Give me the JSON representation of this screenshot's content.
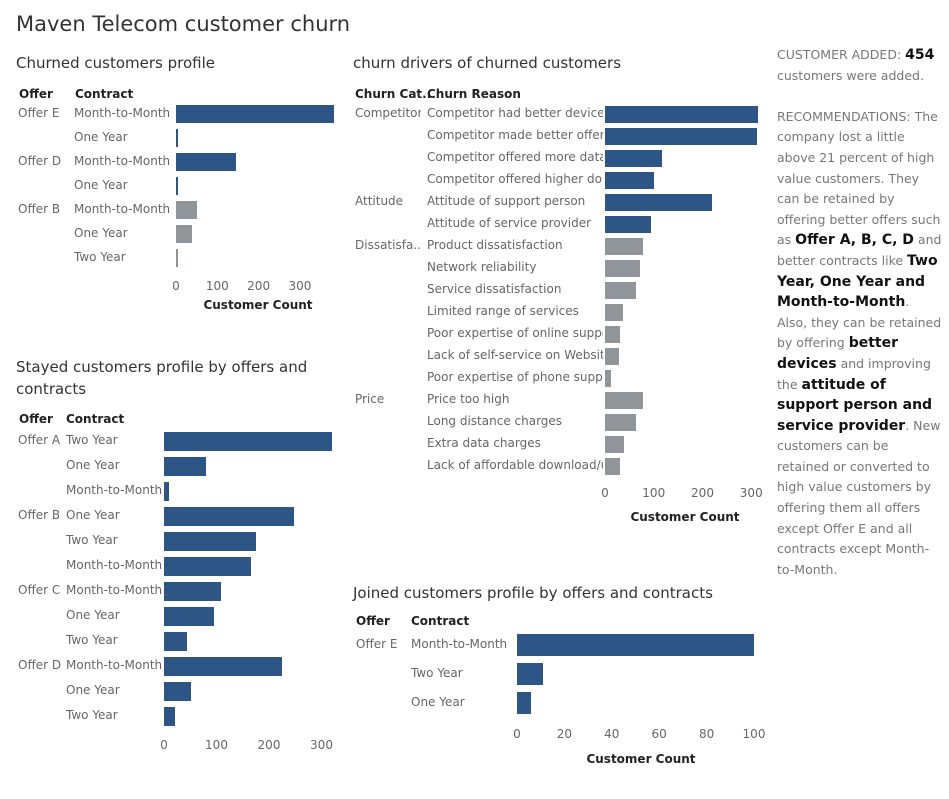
{
  "dashboard_title": "Maven Telecom customer churn",
  "colors": {
    "primary": "#2d5586",
    "secondary": "#8f9598"
  },
  "churned_profile": {
    "title": "Churned customers profile",
    "offer_header": "Offer",
    "contract_header": "Contract",
    "axis_title": "Customer Count",
    "ticks": [
      "0",
      "100",
      "200",
      "300"
    ],
    "chart_data": {
      "type": "bar",
      "orientation": "horizontal",
      "xlim": [
        0,
        380
      ],
      "rows": [
        {
          "offer": "Offer E",
          "contract": "Month-to-Month",
          "value": 383,
          "color": "primary"
        },
        {
          "offer": "",
          "contract": "One Year",
          "value": 3,
          "color": "primary"
        },
        {
          "offer": "Offer D",
          "contract": "Month-to-Month",
          "value": 145,
          "color": "primary"
        },
        {
          "offer": "",
          "contract": "One Year",
          "value": 5,
          "color": "primary"
        },
        {
          "offer": "Offer B",
          "contract": "Month-to-Month",
          "value": 52,
          "color": "secondary"
        },
        {
          "offer": "",
          "contract": "One Year",
          "value": 38,
          "color": "secondary"
        },
        {
          "offer": "",
          "contract": "Two Year",
          "value": 4,
          "color": "secondary"
        }
      ]
    }
  },
  "drivers": {
    "title": "churn drivers of churned customers",
    "cat_header": "Churn Cat..",
    "reason_header": "Churn Reason",
    "axis_title": "Customer Count",
    "ticks": [
      "0",
      "100",
      "200",
      "300"
    ],
    "chart_data": {
      "type": "bar",
      "orientation": "horizontal",
      "xlim": [
        0,
        320
      ],
      "rows": [
        {
          "category": "Competitor",
          "reason": "Competitor had better devices",
          "value": 313,
          "color": "primary"
        },
        {
          "category": "",
          "reason": "Competitor made better offer",
          "value": 311,
          "color": "primary"
        },
        {
          "category": "",
          "reason": "Competitor offered more data",
          "value": 117,
          "color": "primary"
        },
        {
          "category": "",
          "reason": "Competitor offered higher do..",
          "value": 100,
          "color": "primary"
        },
        {
          "category": "Attitude",
          "reason": "Attitude of support person",
          "value": 220,
          "color": "primary"
        },
        {
          "category": "",
          "reason": "Attitude of service provider",
          "value": 94,
          "color": "primary"
        },
        {
          "category": "Dissatisfa..",
          "reason": "Product dissatisfaction",
          "value": 77,
          "color": "secondary"
        },
        {
          "category": "",
          "reason": "Network reliability",
          "value": 72,
          "color": "secondary"
        },
        {
          "category": "",
          "reason": "Service dissatisfaction",
          "value": 63,
          "color": "secondary"
        },
        {
          "category": "",
          "reason": "Limited range of services",
          "value": 37,
          "color": "secondary"
        },
        {
          "category": "",
          "reason": "Poor expertise of online suppo..",
          "value": 31,
          "color": "secondary"
        },
        {
          "category": "",
          "reason": "Lack of self-service on Website",
          "value": 29,
          "color": "secondary"
        },
        {
          "category": "",
          "reason": "Poor expertise of phone suppo..",
          "value": 12,
          "color": "secondary"
        },
        {
          "category": "Price",
          "reason": "Price too high",
          "value": 78,
          "color": "secondary"
        },
        {
          "category": "",
          "reason": "Long distance charges",
          "value": 64,
          "color": "secondary"
        },
        {
          "category": "",
          "reason": "Extra data charges",
          "value": 39,
          "color": "secondary"
        },
        {
          "category": "",
          "reason": "Lack of affordable download/u..",
          "value": 30,
          "color": "secondary"
        }
      ]
    }
  },
  "stayed_profile": {
    "title": "Stayed customers profile by offers and contracts",
    "offer_header": "Offer",
    "contract_header": "Contract",
    "ticks": [
      "0",
      "100",
      "200",
      "300"
    ],
    "chart_data": {
      "type": "bar",
      "orientation": "horizontal",
      "xlim": [
        0,
        320
      ],
      "rows": [
        {
          "offer": "Offer A",
          "contract": "Two Year",
          "value": 320
        },
        {
          "offer": "",
          "contract": "One Year",
          "value": 80
        },
        {
          "offer": "",
          "contract": "Month-to-Month",
          "value": 10
        },
        {
          "offer": "Offer B",
          "contract": "One Year",
          "value": 247
        },
        {
          "offer": "",
          "contract": "Two Year",
          "value": 175
        },
        {
          "offer": "",
          "contract": "Month-to-Month",
          "value": 165
        },
        {
          "offer": "Offer C",
          "contract": "Month-to-Month",
          "value": 108
        },
        {
          "offer": "",
          "contract": "One Year",
          "value": 96
        },
        {
          "offer": "",
          "contract": "Two Year",
          "value": 44
        },
        {
          "offer": "Offer D",
          "contract": "Month-to-Month",
          "value": 225
        },
        {
          "offer": "",
          "contract": "One Year",
          "value": 51
        },
        {
          "offer": "",
          "contract": "Two Year",
          "value": 20
        }
      ]
    }
  },
  "joined_profile": {
    "title": "Joined customers profile by offers and contracts",
    "offer_header": "Offer",
    "contract_header": "Contract",
    "axis_title": "Customer Count",
    "ticks": [
      "0",
      "20",
      "40",
      "60",
      "80",
      "100"
    ],
    "chart_data": {
      "type": "bar",
      "orientation": "horizontal",
      "xlim": [
        0,
        100
      ],
      "rows": [
        {
          "offer": "Offer E",
          "contract": "Month-to-Month",
          "value": 100
        },
        {
          "offer": "",
          "contract": "Two Year",
          "value": 11
        },
        {
          "offer": "",
          "contract": "One Year",
          "value": 6
        }
      ]
    }
  },
  "sidebar": {
    "added_label": "CUSTOMER ADDED:",
    "added_count": "454",
    "added_suffix": "customers were added.",
    "rec_label": "RECOMMENDATIONS:",
    "rec_text1": "The company lost a little above 21 percent of high value customers. They can be retained by offering better offers such as",
    "rec_offers": "Offer A, B, C, D",
    "rec_text2": "and better contracts like",
    "rec_contracts": "Two Year, One Year and Month-to-Month",
    "rec_text3": ". Also, they can be retained by offering",
    "rec_devices": "better devices",
    "rec_text4": "and improving the",
    "rec_attitude": "attitude of support person and service provider",
    "rec_text5": ". New customers can be retained or converted to high value customers by offering them all offers except Offer E and all contracts except Month-to-Month."
  }
}
